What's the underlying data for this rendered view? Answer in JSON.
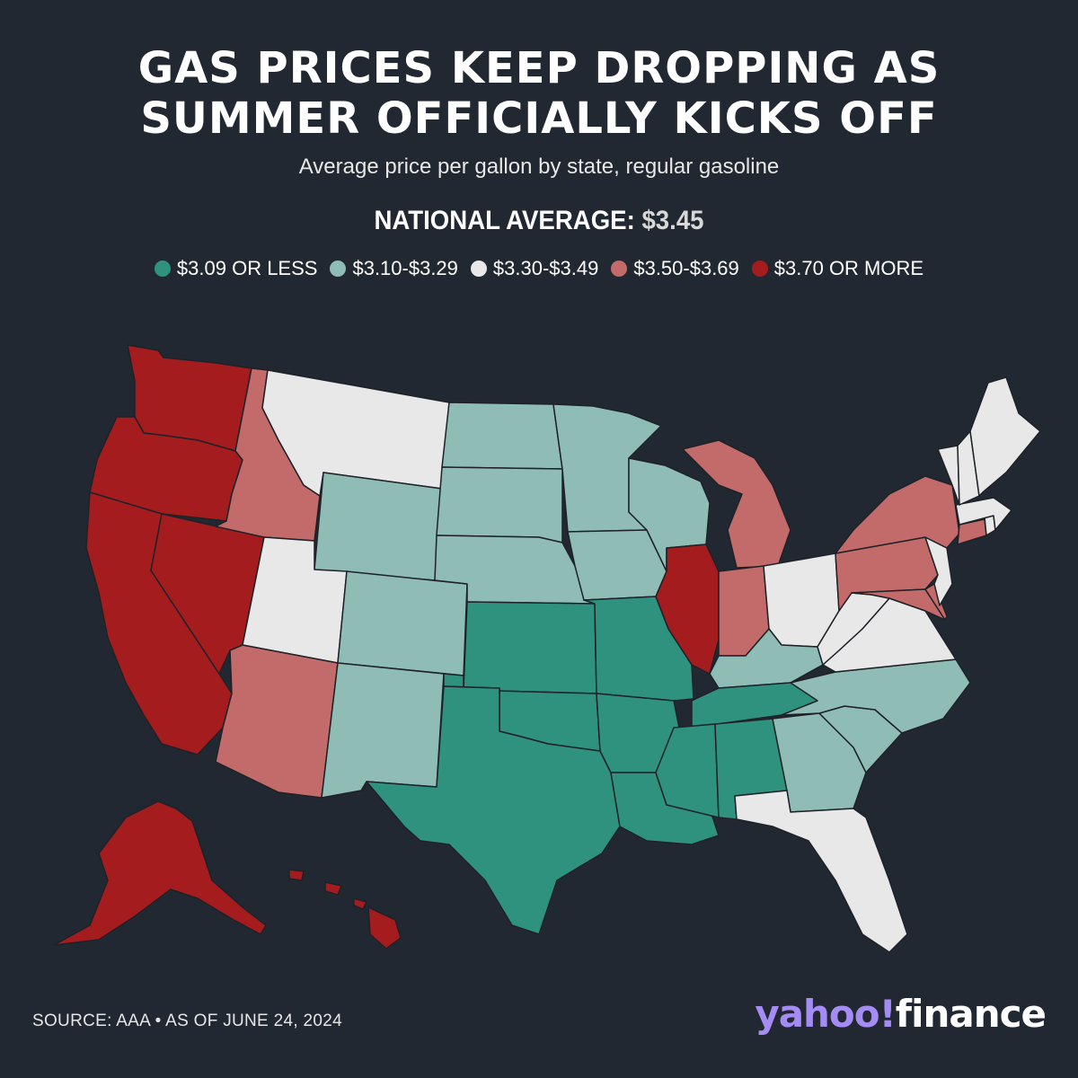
{
  "title": {
    "line1": "GAS PRICES KEEP DROPPING AS",
    "line2": "SUMMER OFFICIALLY KICKS OFF"
  },
  "subtitle": "Average price per gallon by state, regular gasoline",
  "national_average": {
    "label": "NATIONAL AVERAGE:",
    "value": "$3.45"
  },
  "legend": [
    {
      "label": "$3.09 OR LESS",
      "color": "#2f927f"
    },
    {
      "label": "$3.10-$3.29",
      "color": "#8fbdb5"
    },
    {
      "label": "$3.30-$3.49",
      "color": "#e8e8e8"
    },
    {
      "label": "$3.50-$3.69",
      "color": "#c36b6a"
    },
    {
      "label": "$3.70 OR MORE",
      "color": "#a41c1e"
    }
  ],
  "map_states": [
    {
      "state": "WA",
      "bin": 4
    },
    {
      "state": "OR",
      "bin": 4
    },
    {
      "state": "CA",
      "bin": 4
    },
    {
      "state": "NV",
      "bin": 4
    },
    {
      "state": "AK",
      "bin": 4
    },
    {
      "state": "HI",
      "bin": 4
    },
    {
      "state": "IL",
      "bin": 4
    },
    {
      "state": "ID",
      "bin": 3
    },
    {
      "state": "AZ",
      "bin": 3
    },
    {
      "state": "MI",
      "bin": 3
    },
    {
      "state": "IN",
      "bin": 3
    },
    {
      "state": "NY",
      "bin": 3
    },
    {
      "state": "PA",
      "bin": 3
    },
    {
      "state": "CT",
      "bin": 3
    },
    {
      "state": "MD",
      "bin": 3
    },
    {
      "state": "DE",
      "bin": 3
    },
    {
      "state": "MT",
      "bin": 2
    },
    {
      "state": "UT",
      "bin": 2
    },
    {
      "state": "OH",
      "bin": 2
    },
    {
      "state": "WV",
      "bin": 2
    },
    {
      "state": "VA",
      "bin": 2
    },
    {
      "state": "FL",
      "bin": 2
    },
    {
      "state": "ME",
      "bin": 2
    },
    {
      "state": "NH",
      "bin": 2
    },
    {
      "state": "VT",
      "bin": 2
    },
    {
      "state": "MA",
      "bin": 2
    },
    {
      "state": "RI",
      "bin": 2
    },
    {
      "state": "NJ",
      "bin": 2
    },
    {
      "state": "ND",
      "bin": 1
    },
    {
      "state": "SD",
      "bin": 1
    },
    {
      "state": "NE",
      "bin": 1
    },
    {
      "state": "WY",
      "bin": 1
    },
    {
      "state": "CO",
      "bin": 1
    },
    {
      "state": "NM",
      "bin": 1
    },
    {
      "state": "MN",
      "bin": 1
    },
    {
      "state": "IA",
      "bin": 1
    },
    {
      "state": "WI",
      "bin": 1
    },
    {
      "state": "KY",
      "bin": 1
    },
    {
      "state": "NC",
      "bin": 1
    },
    {
      "state": "SC",
      "bin": 1
    },
    {
      "state": "GA",
      "bin": 1
    },
    {
      "state": "KS",
      "bin": 0
    },
    {
      "state": "OK",
      "bin": 0
    },
    {
      "state": "TX",
      "bin": 0
    },
    {
      "state": "MO",
      "bin": 0
    },
    {
      "state": "AR",
      "bin": 0
    },
    {
      "state": "LA",
      "bin": 0
    },
    {
      "state": "MS",
      "bin": 0
    },
    {
      "state": "AL",
      "bin": 0
    },
    {
      "state": "TN",
      "bin": 0
    }
  ],
  "source": "SOURCE: AAA • AS OF JUNE 24, 2024",
  "brand": {
    "part1": "yahoo!",
    "part2": "finance"
  }
}
